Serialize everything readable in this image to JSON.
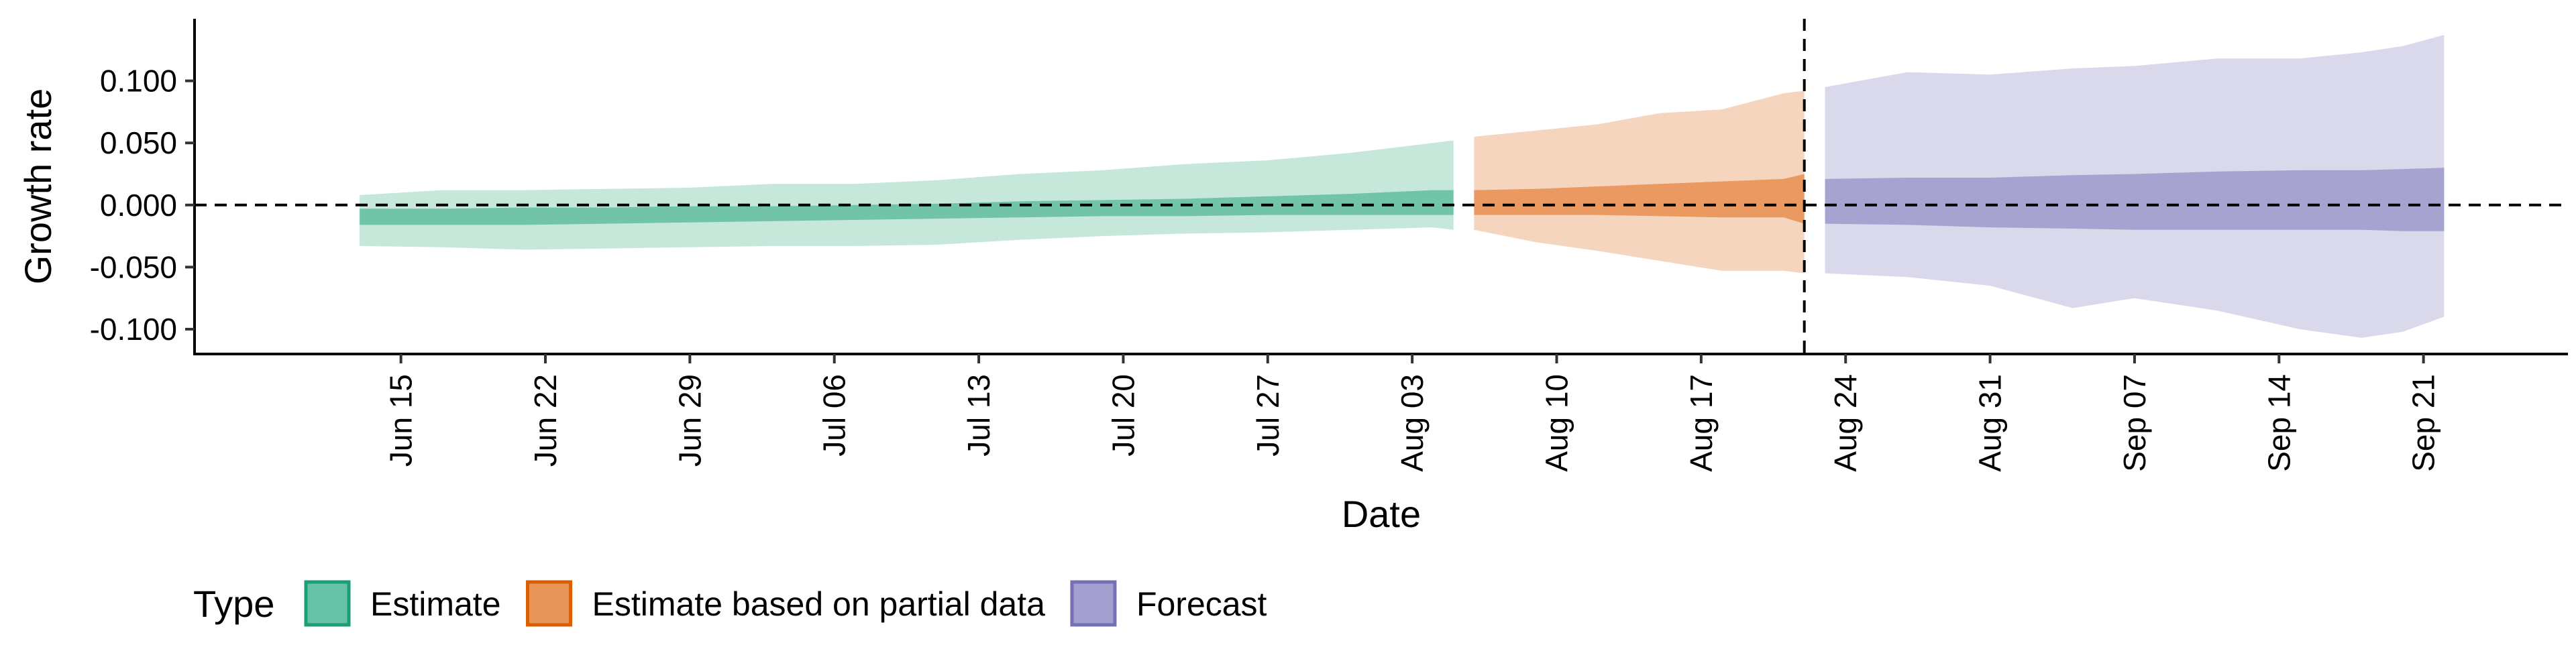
{
  "chart_data": {
    "type": "area",
    "xlabel": "Date",
    "ylabel": "Growth rate",
    "x_type": "date",
    "xlim": [
      "2020-06-05",
      "2020-09-28"
    ],
    "ylim": [
      -0.12,
      0.15
    ],
    "x_ticks": [
      "2020-06-15",
      "2020-06-22",
      "2020-06-29",
      "2020-07-06",
      "2020-07-13",
      "2020-07-20",
      "2020-07-27",
      "2020-08-03",
      "2020-08-10",
      "2020-08-17",
      "2020-08-24",
      "2020-08-31",
      "2020-09-07",
      "2020-09-14",
      "2020-09-21"
    ],
    "x_tick_labels": [
      "Jun 15",
      "Jun 22",
      "Jun 29",
      "Jul 06",
      "Jul 13",
      "Jul 20",
      "Jul 27",
      "Aug 03",
      "Aug 10",
      "Aug 17",
      "Aug 24",
      "Aug 31",
      "Sep 07",
      "Sep 14",
      "Sep 21"
    ],
    "y_ticks": [
      -0.1,
      -0.05,
      0.0,
      0.05,
      0.1
    ],
    "y_tick_labels": [
      "-0.100",
      "-0.050",
      "0.000",
      "0.050",
      "0.100"
    ],
    "reference_lines": {
      "horizontal_y": 0.0,
      "vertical_x": "2020-08-22"
    },
    "grid": false,
    "legend": {
      "title": "Type",
      "position": "bottom-left",
      "entries": [
        {
          "label": "Estimate",
          "color": "#66C2A5",
          "border": "#1B9E77"
        },
        {
          "label": "Estimate based on partial data",
          "color": "#E8955A",
          "border": "#D95F02"
        },
        {
          "label": "Forecast",
          "color": "#A39FCF",
          "border": "#7570B3"
        }
      ]
    },
    "series": [
      {
        "name": "Estimate",
        "light_color": "#C5E8DB",
        "dark_color": "#72C4A8",
        "x": [
          "2020-06-13",
          "2020-06-17",
          "2020-06-21",
          "2020-06-25",
          "2020-06-29",
          "2020-07-03",
          "2020-07-07",
          "2020-07-11",
          "2020-07-15",
          "2020-07-19",
          "2020-07-23",
          "2020-07-27",
          "2020-07-31",
          "2020-08-04",
          "2020-08-05"
        ],
        "outer_low": [
          -0.033,
          -0.034,
          -0.036,
          -0.035,
          -0.034,
          -0.033,
          -0.033,
          -0.032,
          -0.028,
          -0.025,
          -0.023,
          -0.022,
          -0.02,
          -0.018,
          -0.02
        ],
        "outer_high": [
          0.008,
          0.012,
          0.012,
          0.013,
          0.014,
          0.017,
          0.017,
          0.02,
          0.025,
          0.028,
          0.033,
          0.036,
          0.042,
          0.05,
          0.052
        ],
        "inner_low": [
          -0.016,
          -0.016,
          -0.016,
          -0.015,
          -0.014,
          -0.013,
          -0.012,
          -0.011,
          -0.01,
          -0.009,
          -0.009,
          -0.008,
          -0.008,
          -0.008,
          -0.008
        ],
        "inner_high": [
          -0.003,
          -0.003,
          -0.002,
          -0.002,
          -0.001,
          -0.001,
          0.0,
          0.001,
          0.003,
          0.004,
          0.005,
          0.007,
          0.009,
          0.012,
          0.012
        ]
      },
      {
        "name": "Estimate based on partial data",
        "light_color": "#F6D5BF",
        "dark_color": "#EA9A60",
        "x": [
          "2020-08-06",
          "2020-08-09",
          "2020-08-12",
          "2020-08-15",
          "2020-08-18",
          "2020-08-21",
          "2020-08-22"
        ],
        "outer_low": [
          -0.02,
          -0.03,
          -0.037,
          -0.045,
          -0.053,
          -0.053,
          -0.055
        ],
        "outer_high": [
          0.055,
          0.06,
          0.065,
          0.074,
          0.077,
          0.09,
          0.092
        ],
        "inner_low": [
          -0.008,
          -0.008,
          -0.008,
          -0.009,
          -0.01,
          -0.01,
          -0.015
        ],
        "inner_high": [
          0.012,
          0.013,
          0.015,
          0.017,
          0.019,
          0.021,
          0.025
        ]
      },
      {
        "name": "Forecast",
        "light_color": "#DAD9EB",
        "dark_color": "#A7A3D0",
        "x": [
          "2020-08-23",
          "2020-08-27",
          "2020-08-31",
          "2020-09-04",
          "2020-09-07",
          "2020-09-11",
          "2020-09-15",
          "2020-09-18",
          "2020-09-20",
          "2020-09-22"
        ],
        "outer_low": [
          -0.055,
          -0.058,
          -0.065,
          -0.083,
          -0.075,
          -0.085,
          -0.1,
          -0.107,
          -0.102,
          -0.09
        ],
        "outer_high": [
          0.095,
          0.107,
          0.105,
          0.11,
          0.112,
          0.118,
          0.118,
          0.123,
          0.128,
          0.137
        ],
        "inner_low": [
          -0.015,
          -0.016,
          -0.018,
          -0.019,
          -0.02,
          -0.02,
          -0.02,
          -0.02,
          -0.021,
          -0.021
        ],
        "inner_high": [
          0.021,
          0.022,
          0.022,
          0.024,
          0.025,
          0.027,
          0.028,
          0.028,
          0.029,
          0.03
        ]
      }
    ]
  }
}
